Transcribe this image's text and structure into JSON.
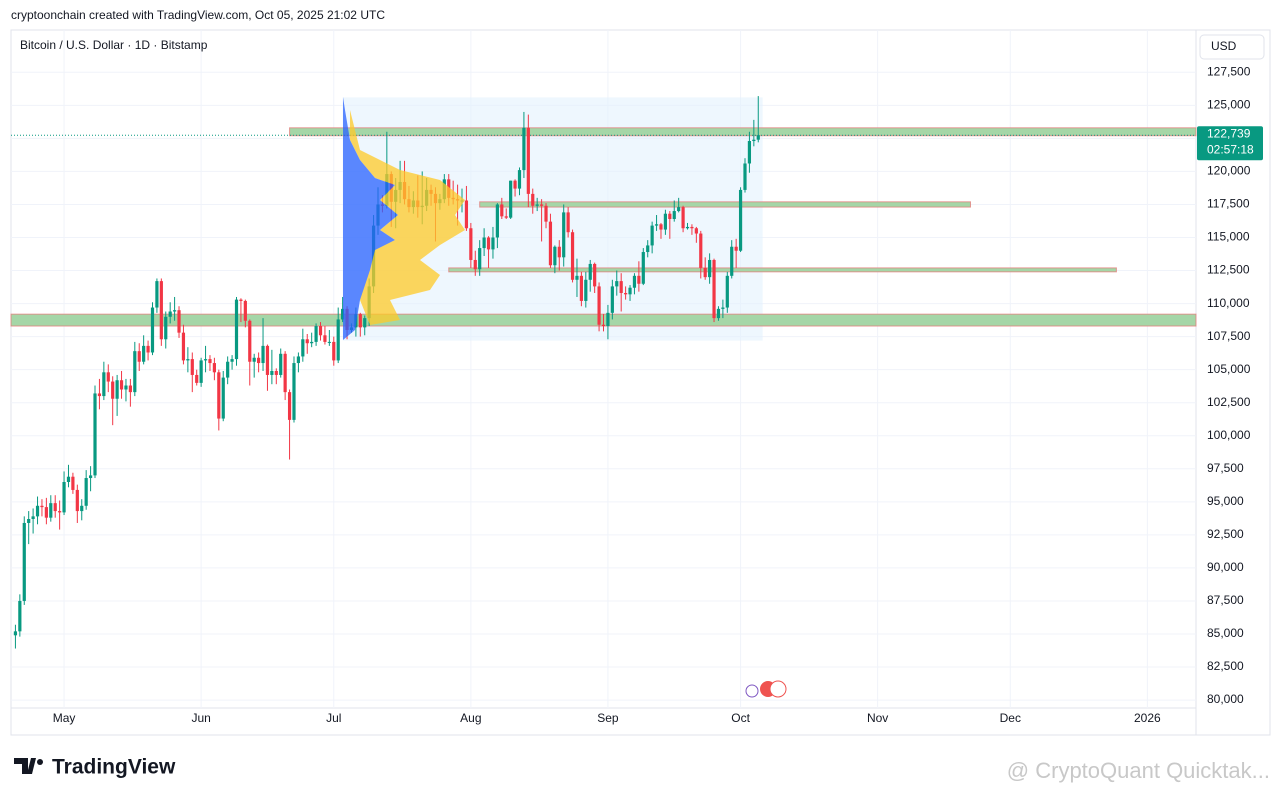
{
  "chart_data": {
    "type": "candlestick",
    "caption": "cryptoonchain created with TradingView.com, Oct 05, 2025 21:02 UTC",
    "title": "Bitcoin / U.S. Dollar · 1D · Bitstamp",
    "currency": "USD",
    "up_color": "#089981",
    "down_color": "#f23645",
    "x": [
      110,
      111,
      112,
      113,
      114,
      115,
      116,
      117,
      118,
      119,
      120,
      121,
      122,
      123,
      124,
      125,
      126,
      127,
      128,
      129,
      130,
      131,
      132,
      133,
      134,
      135,
      136,
      137,
      138,
      139,
      140,
      141,
      142,
      143,
      144,
      145,
      146,
      147,
      148,
      149,
      150,
      151,
      152,
      153,
      154,
      155,
      156,
      157,
      158,
      159,
      160,
      161,
      162,
      163,
      164,
      165,
      166,
      167,
      168,
      169,
      170,
      171,
      172,
      173,
      174,
      175,
      176,
      177,
      178,
      179,
      180,
      181,
      182,
      183,
      184,
      185,
      186,
      187,
      188,
      189,
      190,
      191,
      192,
      193,
      194,
      195,
      196,
      197,
      198,
      199,
      200,
      201,
      202,
      203,
      204,
      205,
      206,
      207,
      208,
      209,
      210,
      211,
      212,
      213,
      214,
      215,
      216,
      217,
      218,
      219,
      220,
      221,
      222,
      223,
      224,
      225,
      226,
      227,
      228,
      229,
      230,
      231,
      232,
      233,
      234,
      235,
      236,
      237,
      238,
      239,
      240,
      241,
      242,
      243,
      244,
      245,
      246,
      247,
      248,
      249,
      250,
      251,
      252,
      253,
      254,
      255,
      256,
      257,
      258,
      259,
      260,
      261,
      262,
      263,
      264,
      265,
      266,
      267,
      268,
      269,
      270,
      271,
      272,
      273,
      274,
      275,
      276,
      277,
      278
    ],
    "candles": [
      [
        84900,
        85700,
        83900,
        85200
      ],
      [
        85200,
        88000,
        84800,
        87500
      ],
      [
        87500,
        93900,
        87200,
        93400
      ],
      [
        93400,
        94300,
        91800,
        93700
      ],
      [
        93700,
        94500,
        92600,
        93900
      ],
      [
        93900,
        95400,
        93300,
        94700
      ],
      [
        94700,
        95200,
        93900,
        94600
      ],
      [
        94600,
        95300,
        93300,
        93800
      ],
      [
        93800,
        95500,
        93500,
        94900
      ],
      [
        94900,
        95500,
        93800,
        94300
      ],
      [
        94300,
        95100,
        92900,
        94200
      ],
      [
        94200,
        97300,
        94000,
        96500
      ],
      [
        96500,
        97800,
        96100,
        96900
      ],
      [
        96900,
        97200,
        95600,
        95900
      ],
      [
        95900,
        96300,
        93400,
        94300
      ],
      [
        94300,
        95200,
        93600,
        94700
      ],
      [
        94700,
        97400,
        94400,
        96800
      ],
      [
        96800,
        97700,
        95800,
        97000
      ],
      [
        97000,
        103800,
        96800,
        103200
      ],
      [
        103200,
        104300,
        102000,
        103000
      ],
      [
        103000,
        105600,
        102700,
        104800
      ],
      [
        104800,
        105400,
        103300,
        104100
      ],
      [
        104100,
        104500,
        100800,
        102800
      ],
      [
        102800,
        104600,
        101500,
        104200
      ],
      [
        104200,
        104900,
        102800,
        103500
      ],
      [
        103500,
        104300,
        102600,
        103800
      ],
      [
        103800,
        104300,
        102200,
        103300
      ],
      [
        103300,
        107100,
        103000,
        106400
      ],
      [
        106400,
        107000,
        104900,
        105600
      ],
      [
        105600,
        107600,
        105400,
        106800
      ],
      [
        106800,
        107200,
        105700,
        106300
      ],
      [
        106300,
        110100,
        106100,
        109700
      ],
      [
        109700,
        111900,
        109300,
        111700
      ],
      [
        111700,
        111900,
        106800,
        107300
      ],
      [
        107300,
        109400,
        106600,
        109000
      ],
      [
        109000,
        110100,
        108500,
        109400
      ],
      [
        109400,
        110500,
        108700,
        109500
      ],
      [
        109500,
        109800,
        107400,
        107800
      ],
      [
        107800,
        108400,
        105400,
        105700
      ],
      [
        105700,
        106700,
        104800,
        105800
      ],
      [
        105800,
        106300,
        103300,
        104600
      ],
      [
        104600,
        105000,
        103800,
        104000
      ],
      [
        104000,
        105900,
        103700,
        105700
      ],
      [
        105700,
        106800,
        104800,
        105800
      ],
      [
        105800,
        106100,
        104900,
        105500
      ],
      [
        105500,
        105900,
        104200,
        104800
      ],
      [
        104800,
        105000,
        100400,
        101300
      ],
      [
        101300,
        104900,
        101100,
        104400
      ],
      [
        104400,
        106000,
        103900,
        105600
      ],
      [
        105600,
        106100,
        105000,
        105800
      ],
      [
        105800,
        110500,
        105300,
        110300
      ],
      [
        110300,
        110400,
        108600,
        110200
      ],
      [
        110200,
        110300,
        108200,
        108700
      ],
      [
        108700,
        108800,
        103800,
        105600
      ],
      [
        105600,
        106200,
        104400,
        105900
      ],
      [
        105900,
        106300,
        104800,
        105500
      ],
      [
        105500,
        108900,
        104900,
        106800
      ],
      [
        106800,
        106900,
        103400,
        104600
      ],
      [
        104600,
        106500,
        103900,
        104900
      ],
      [
        104900,
        105100,
        103900,
        104600
      ],
      [
        104600,
        106600,
        104400,
        106200
      ],
      [
        106200,
        106400,
        102700,
        103300
      ],
      [
        103300,
        103500,
        98200,
        101200
      ],
      [
        101200,
        106000,
        101000,
        105500
      ],
      [
        105500,
        106300,
        104800,
        106000
      ],
      [
        106000,
        108100,
        105600,
        107300
      ],
      [
        107300,
        107700,
        106200,
        107000
      ],
      [
        107000,
        107800,
        106700,
        107100
      ],
      [
        107100,
        108500,
        106800,
        108300
      ],
      [
        108300,
        108600,
        107200,
        107600
      ],
      [
        107600,
        108300,
        106900,
        107100
      ],
      [
        107100,
        108000,
        106800,
        107100
      ],
      [
        107100,
        107500,
        105300,
        105700
      ],
      [
        105700,
        109700,
        105500,
        108800
      ],
      [
        108800,
        110500,
        108600,
        109600
      ],
      [
        109600,
        109800,
        107300,
        108000
      ],
      [
        108000,
        108500,
        107800,
        108200
      ],
      [
        108200,
        109700,
        107500,
        109200
      ],
      [
        109200,
        109300,
        107500,
        108200
      ],
      [
        108200,
        109100,
        107600,
        108900
      ],
      [
        108900,
        111900,
        108300,
        111300
      ],
      [
        111300,
        116700,
        110800,
        115900
      ],
      [
        115900,
        118800,
        115200,
        117500
      ],
      [
        117500,
        118200,
        116900,
        117400
      ],
      [
        117400,
        123000,
        117200,
        119800
      ],
      [
        119800,
        120000,
        115800,
        117700
      ],
      [
        117700,
        119500,
        115700,
        118600
      ],
      [
        118600,
        120800,
        117600,
        119200
      ],
      [
        119200,
        120800,
        117500,
        117900
      ],
      [
        117900,
        118900,
        116900,
        117300
      ],
      [
        117300,
        118500,
        116800,
        117800
      ],
      [
        117800,
        119700,
        116500,
        117300
      ],
      [
        117300,
        120000,
        116000,
        117400
      ],
      [
        117400,
        119500,
        117000,
        118600
      ],
      [
        118600,
        119000,
        117400,
        118300
      ],
      [
        118300,
        118800,
        114700,
        117600
      ],
      [
        117600,
        118300,
        117100,
        117900
      ],
      [
        117900,
        119800,
        117600,
        119400
      ],
      [
        119400,
        119800,
        117400,
        118000
      ],
      [
        118000,
        119300,
        117500,
        117900
      ],
      [
        117900,
        119000,
        115900,
        117800
      ],
      [
        117800,
        118700,
        116900,
        117800
      ],
      [
        117800,
        118900,
        115500,
        115700
      ],
      [
        115700,
        116100,
        112700,
        113300
      ],
      [
        113300,
        114000,
        112100,
        112600
      ],
      [
        112600,
        114800,
        112100,
        114200
      ],
      [
        114200,
        115700,
        113600,
        115000
      ],
      [
        115000,
        115100,
        112700,
        114100
      ],
      [
        114100,
        115800,
        113400,
        115000
      ],
      [
        115000,
        117600,
        114200,
        117500
      ],
      [
        117500,
        118000,
        116400,
        116600
      ],
      [
        116600,
        117200,
        116400,
        116500
      ],
      [
        116500,
        119300,
        116400,
        119300
      ],
      [
        119300,
        119400,
        118100,
        118700
      ],
      [
        118700,
        120300,
        118200,
        120100
      ],
      [
        120100,
        124500,
        119500,
        123300
      ],
      [
        123300,
        124300,
        117300,
        118300
      ],
      [
        118300,
        118700,
        116800,
        117400
      ],
      [
        117400,
        118000,
        117000,
        117500
      ],
      [
        117500,
        117900,
        114700,
        117400
      ],
      [
        117400,
        117600,
        115700,
        116200
      ],
      [
        116200,
        116800,
        112700,
        112900
      ],
      [
        112900,
        114400,
        112300,
        114300
      ],
      [
        114300,
        114800,
        112500,
        113500
      ],
      [
        113500,
        117500,
        112800,
        116900
      ],
      [
        116900,
        117300,
        115000,
        115400
      ],
      [
        115400,
        115600,
        111600,
        111800
      ],
      [
        111800,
        113400,
        110500,
        112100
      ],
      [
        112100,
        112400,
        109800,
        110200
      ],
      [
        110200,
        112400,
        109700,
        111800
      ],
      [
        111800,
        113300,
        110900,
        113000
      ],
      [
        113000,
        113100,
        110800,
        111300
      ],
      [
        111300,
        111600,
        107900,
        108400
      ],
      [
        108400,
        109200,
        107900,
        108300
      ],
      [
        108300,
        109900,
        107300,
        109300
      ],
      [
        109300,
        111800,
        108800,
        111300
      ],
      [
        111300,
        112500,
        110600,
        111700
      ],
      [
        111700,
        112300,
        109400,
        110800
      ],
      [
        110800,
        111300,
        110300,
        110700
      ],
      [
        110700,
        111400,
        110200,
        111200
      ],
      [
        111200,
        112300,
        110700,
        112100
      ],
      [
        112100,
        113200,
        110900,
        111500
      ],
      [
        111500,
        114200,
        111400,
        113900
      ],
      [
        113900,
        114800,
        113500,
        114400
      ],
      [
        114400,
        116200,
        113800,
        115900
      ],
      [
        115900,
        116700,
        115500,
        116000
      ],
      [
        116000,
        116100,
        114900,
        115600
      ],
      [
        115600,
        117100,
        115200,
        116800
      ],
      [
        116800,
        117000,
        114900,
        116400
      ],
      [
        116400,
        117800,
        116200,
        117000
      ],
      [
        117000,
        118000,
        116900,
        117300
      ],
      [
        117300,
        117400,
        115400,
        115700
      ],
      [
        115700,
        116100,
        115600,
        115800
      ],
      [
        115800,
        116000,
        115200,
        115700
      ],
      [
        115700,
        115800,
        114600,
        115300
      ],
      [
        115300,
        115500,
        111900,
        112700
      ],
      [
        112700,
        113500,
        111800,
        112000
      ],
      [
        112000,
        113800,
        111500,
        113300
      ],
      [
        113300,
        113400,
        108600,
        108900
      ],
      [
        108900,
        109800,
        108700,
        109600
      ],
      [
        109600,
        110300,
        108900,
        109700
      ],
      [
        109700,
        112400,
        109300,
        112100
      ],
      [
        112100,
        114800,
        111900,
        114300
      ],
      [
        114300,
        114900,
        112700,
        114000
      ],
      [
        114000,
        118800,
        113900,
        118600
      ],
      [
        118600,
        121000,
        118400,
        120600
      ],
      [
        120600,
        123000,
        119900,
        122300
      ],
      [
        122300,
        123900,
        121900,
        122400
      ],
      [
        122400,
        125700,
        122200,
        122739
      ]
    ],
    "xlim": [
      109,
      377
    ],
    "xticks": [
      {
        "value": 121,
        "label": "May"
      },
      {
        "value": 152,
        "label": "Jun"
      },
      {
        "value": 182,
        "label": "Jul"
      },
      {
        "value": 213,
        "label": "Aug"
      },
      {
        "value": 244,
        "label": "Sep"
      },
      {
        "value": 274,
        "label": "Oct"
      },
      {
        "value": 305,
        "label": "Nov"
      },
      {
        "value": 335,
        "label": "Dec"
      },
      {
        "value": 366,
        "label": "2026"
      }
    ],
    "ylim": [
      79400,
      130700
    ],
    "yticks": [
      {
        "value": 80000,
        "label": "80,000"
      },
      {
        "value": 82500,
        "label": "82,500"
      },
      {
        "value": 85000,
        "label": "85,000"
      },
      {
        "value": 87500,
        "label": "87,500"
      },
      {
        "value": 90000,
        "label": "90,000"
      },
      {
        "value": 92500,
        "label": "92,500"
      },
      {
        "value": 95000,
        "label": "95,000"
      },
      {
        "value": 97500,
        "label": "97,500"
      },
      {
        "value": 100000,
        "label": "100,000"
      },
      {
        "value": 102500,
        "label": "102,500"
      },
      {
        "value": 105000,
        "label": "105,000"
      },
      {
        "value": 107500,
        "label": "107,500"
      },
      {
        "value": 110000,
        "label": "110,000"
      },
      {
        "value": 112500,
        "label": "112,500"
      },
      {
        "value": 115000,
        "label": "115,000"
      },
      {
        "value": 117500,
        "label": "117,500"
      },
      {
        "value": 120000,
        "label": "120,000"
      },
      {
        "value": 122500,
        "label": "122,500"
      },
      {
        "value": 125000,
        "label": "125,000"
      },
      {
        "value": 127500,
        "label": "127,500"
      }
    ],
    "grid": true,
    "last_price": {
      "value": 122739,
      "label": "122,739"
    },
    "countdown": "02:57:18",
    "range_box": {
      "x": [
        184,
        279
      ],
      "y": [
        107200,
        125600
      ],
      "color": "#e3f2fd"
    },
    "zones": [
      {
        "x": [
          172,
          377
        ],
        "y": [
          122700,
          123300
        ],
        "color": "#a5d6a7"
      },
      {
        "x": [
          215,
          326
        ],
        "y": [
          117300,
          117700
        ],
        "color": "#a5d6a7"
      },
      {
        "x": [
          208,
          359
        ],
        "y": [
          112400,
          112700
        ],
        "color": "#a5d6a7"
      },
      {
        "x": [
          109,
          377
        ],
        "y": [
          108300,
          109200
        ],
        "color": "#a5d6a7"
      }
    ],
    "brand": "TradingView",
    "watermark": "@ CryptoQuant Quicktak..."
  }
}
